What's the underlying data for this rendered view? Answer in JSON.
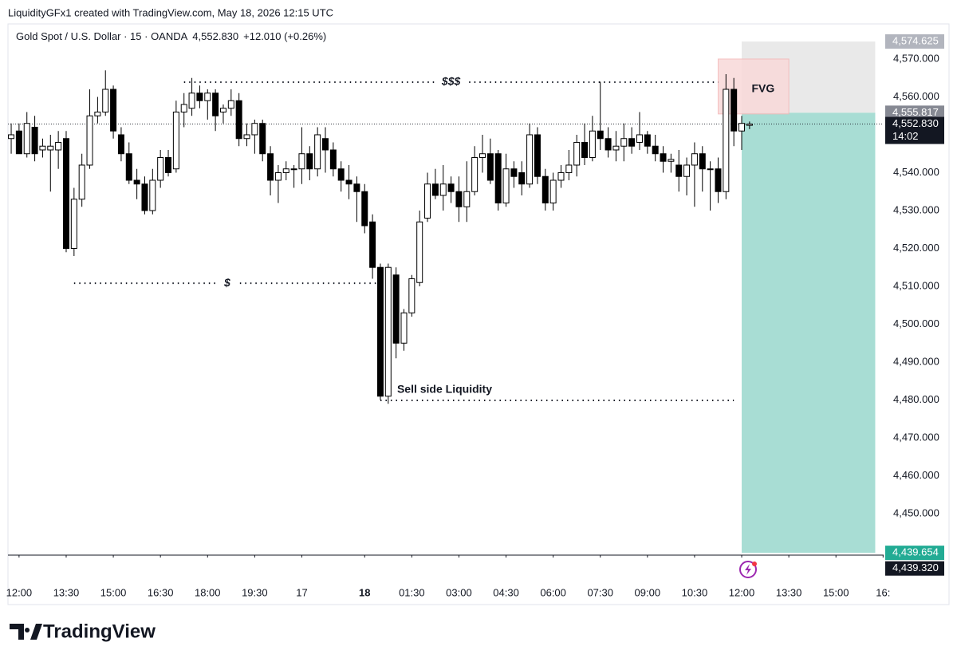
{
  "chart_data": {
    "type": "candlestick",
    "header": "LiquidityGFx1 created with TradingView.com, May 18, 2026 12:15 UTC",
    "legend": {
      "symbol": "Gold Spot / U.S. Dollar · 15 · OANDA",
      "price": "4,552.830",
      "change": "+12.010 (+0.26%)"
    },
    "footer": "TradingView",
    "up_color": "#ffffff",
    "down_color": "#000000",
    "candles": {
      "open": [
        4549,
        4551,
        4545,
        4552,
        4546,
        4546,
        4546,
        4549,
        4520,
        4533,
        4542,
        4555,
        4556,
        4562,
        4550,
        4545,
        4538,
        4537,
        4530,
        4538,
        4544,
        4541,
        4556,
        4557,
        4561,
        4559,
        4561,
        4556,
        4557,
        4559,
        4549,
        4550,
        4553,
        4545,
        4538,
        4540,
        4541,
        4541,
        4545,
        4541,
        4549,
        4546,
        4541,
        4538,
        4537,
        4535,
        4527,
        4515,
        4481,
        4513,
        4495,
        4503,
        4511,
        4528,
        4537,
        4534,
        4537,
        4535,
        4531,
        4535,
        4544,
        4545,
        4545,
        4532,
        4541,
        4540,
        4537,
        4550,
        4539,
        4532,
        4538,
        4540,
        4542,
        4548,
        4544,
        4551,
        4549,
        4546,
        4547,
        4549,
        4548,
        4550,
        4547,
        4545,
        4543,
        4542,
        4539,
        4542,
        4545,
        4541,
        4541,
        4535,
        4562,
        4551,
        4552.5
      ],
      "high": [
        4553,
        4553,
        4556,
        4555,
        4549,
        4550,
        4551,
        4551,
        4536,
        4545,
        4562,
        4560,
        4567,
        4563,
        4552,
        4548,
        4541,
        4539,
        4541,
        4546,
        4546,
        4559,
        4561,
        4565,
        4563,
        4562,
        4562,
        4558,
        4562,
        4561,
        4553,
        4554,
        4554,
        4547,
        4542,
        4543,
        4542,
        4552,
        4547,
        4552,
        4552,
        4548,
        4543,
        4542,
        4539,
        4537,
        4529,
        4516,
        4516,
        4515,
        4504,
        4513,
        4530,
        4540,
        4541,
        4542,
        4539,
        4539,
        4543,
        4547,
        4550,
        4549,
        4546,
        4545,
        4543,
        4543,
        4553,
        4552,
        4541,
        4540,
        4542,
        4546,
        4550,
        4553,
        4555,
        4564,
        4552,
        4551,
        4553,
        4552,
        4556,
        4551,
        4550,
        4547,
        4545,
        4546,
        4544,
        4548,
        4547,
        4543,
        4544,
        4566,
        4565,
        4555,
        4553.5
      ],
      "low": [
        4545,
        4545,
        4544,
        4543,
        4544,
        4535,
        4541,
        4519,
        4518,
        4531,
        4541,
        4553,
        4555,
        4549,
        4543,
        4537,
        4533,
        4529,
        4529,
        4536,
        4539,
        4540,
        4552,
        4555,
        4557,
        4554,
        4551,
        4553,
        4555,
        4547,
        4547,
        4545,
        4543,
        4534,
        4532,
        4538,
        4536,
        4537,
        4538,
        4539,
        4540,
        4539,
        4535,
        4533,
        4527,
        4524,
        4512,
        4480,
        4479,
        4491,
        4493,
        4502,
        4510,
        4527,
        4533,
        4530,
        4532,
        4527,
        4527,
        4534,
        4540,
        4537,
        4530,
        4531,
        4536,
        4534,
        4536,
        4537,
        4530,
        4530,
        4536,
        4538,
        4539,
        4542,
        4543,
        4546,
        4544,
        4543,
        4543,
        4545,
        4546,
        4545,
        4543,
        4540,
        4540,
        4535,
        4534,
        4531,
        4535,
        4530,
        4532,
        4533,
        4547,
        4546,
        4551.5
      ],
      "close": [
        4550,
        4545,
        4553,
        4545,
        4547,
        4547,
        4548,
        4520,
        4533,
        4542,
        4555,
        4556,
        4562,
        4551,
        4545,
        4538,
        4537,
        4530,
        4538,
        4544,
        4540,
        4556,
        4558,
        4561,
        4559,
        4561,
        4555,
        4557,
        4559,
        4549,
        4550,
        4553,
        4545,
        4538,
        4540,
        4541,
        4541,
        4545,
        4541,
        4550,
        4546,
        4541,
        4538,
        4537,
        4535,
        4526,
        4515,
        4481,
        4515,
        4495,
        4503,
        4512,
        4527,
        4537,
        4534,
        4537,
        4535,
        4531,
        4535,
        4544,
        4545,
        4538,
        4532,
        4541,
        4539,
        4537,
        4550,
        4539,
        4532,
        4538,
        4540,
        4542,
        4548,
        4544,
        4551,
        4549,
        4546,
        4547,
        4549,
        4547,
        4550,
        4547,
        4545,
        4543,
        4543.5,
        4539,
        4542,
        4545,
        4541,
        4541,
        4535,
        4562,
        4551,
        4553,
        4552.83
      ]
    },
    "xlim": [
      -0.41,
      111.07
    ],
    "xticks": [
      {
        "value": 1,
        "label": "12:00"
      },
      {
        "value": 7,
        "label": "13:30"
      },
      {
        "value": 13,
        "label": "15:00"
      },
      {
        "value": 19,
        "label": "16:30"
      },
      {
        "value": 25,
        "label": "18:00"
      },
      {
        "value": 31,
        "label": "19:30"
      },
      {
        "value": 37,
        "label": "17"
      },
      {
        "value": 45,
        "label": "18"
      },
      {
        "value": 51,
        "label": "01:30"
      },
      {
        "value": 57,
        "label": "03:00"
      },
      {
        "value": 63,
        "label": "04:30"
      },
      {
        "value": 69,
        "label": "06:00"
      },
      {
        "value": 75,
        "label": "07:30"
      },
      {
        "value": 81,
        "label": "09:00"
      },
      {
        "value": 87,
        "label": "10:30"
      },
      {
        "value": 93,
        "label": "12:00"
      },
      {
        "value": 99,
        "label": "13:30"
      },
      {
        "value": 105,
        "label": "15:00"
      },
      {
        "value": 111,
        "label": "16:"
      }
    ],
    "ylim": [
      4439.05,
      4579.26
    ],
    "yticks": [
      {
        "value": 4450,
        "label": "4,450.000"
      },
      {
        "value": 4460,
        "label": "4,460.000"
      },
      {
        "value": 4470,
        "label": "4,470.000"
      },
      {
        "value": 4480,
        "label": "4,480.000"
      },
      {
        "value": 4490,
        "label": "4,490.000"
      },
      {
        "value": 4500,
        "label": "4,500.000"
      },
      {
        "value": 4510,
        "label": "4,510.000"
      },
      {
        "value": 4520,
        "label": "4,520.000"
      },
      {
        "value": 4530,
        "label": "4,530.000"
      },
      {
        "value": 4540,
        "label": "4,540.000"
      },
      {
        "value": 4560,
        "label": "4,560.000"
      },
      {
        "value": 4570,
        "label": "4,570.000"
      }
    ],
    "price_labels": [
      {
        "value": 4574.625,
        "label": "4,574.625",
        "color": "#b2b5be"
      },
      {
        "value": 4555.817,
        "label": "4,555.817",
        "color": "#868993"
      },
      {
        "value": 4552.83,
        "label": "4,552.830",
        "color": "#131722",
        "countdown": "14:02"
      },
      {
        "value": 4439.654,
        "label": "4,439.654",
        "color": "#22ab94"
      },
      {
        "value": 4439.32,
        "label": "4,439.320",
        "color": "#131722"
      }
    ],
    "position": {
      "x": [
        93,
        110
      ],
      "stop_color": "#e3e3e3",
      "target_color": "#a8ddd4"
    },
    "fvg": {
      "label": "FVG",
      "x": [
        90,
        99
      ],
      "ylim": [
        4555.5,
        4570
      ],
      "color": "#f9d9d9"
    },
    "levels": [
      {
        "label": "$$$",
        "value": 4563.9,
        "x": [
          22,
          90
        ]
      },
      {
        "label": "$",
        "value": 4510.8,
        "x": [
          8,
          47
        ]
      },
      {
        "label": "Sell side Liquidity",
        "value": 4479.9,
        "x": [
          47,
          92
        ]
      }
    ]
  }
}
